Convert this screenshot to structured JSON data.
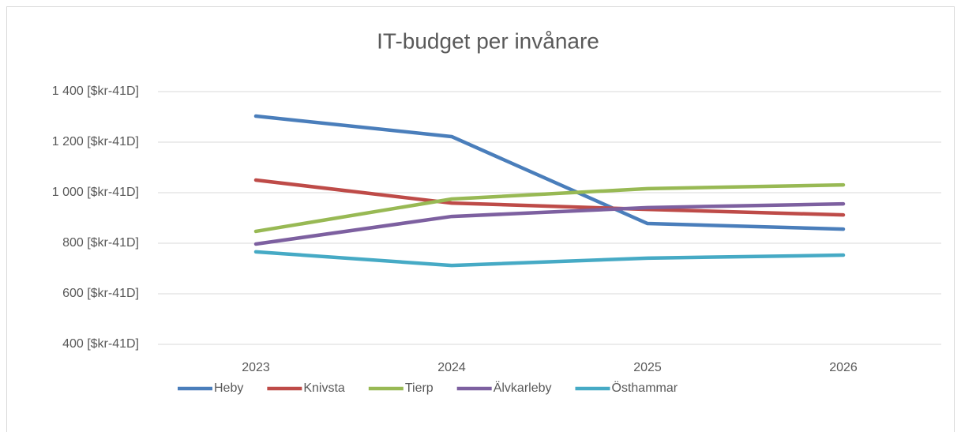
{
  "chart_data": {
    "type": "line",
    "title": "IT-budget per invånare",
    "categories": [
      "2023",
      "2024",
      "2025",
      "2026"
    ],
    "series": [
      {
        "name": "Heby",
        "color": "#4a7ebb",
        "values": [
          1303,
          1222,
          878,
          856
        ]
      },
      {
        "name": "Knivsta",
        "color": "#be4b48",
        "values": [
          1050,
          959,
          934,
          912
        ]
      },
      {
        "name": "Tierp",
        "color": "#98b954",
        "values": [
          847,
          975,
          1016,
          1031
        ]
      },
      {
        "name": "Älvkarleby",
        "color": "#7d60a0",
        "values": [
          797,
          906,
          941,
          956
        ]
      },
      {
        "name": "Östhammar",
        "color": "#46aac5",
        "values": [
          766,
          712,
          741,
          753
        ]
      }
    ],
    "ylim": [
      400,
      1400
    ],
    "yticks": [
      {
        "value": 400,
        "label": "400 [$kr-41D]"
      },
      {
        "value": 600,
        "label": "600 [$kr-41D]"
      },
      {
        "value": 800,
        "label": "800 [$kr-41D]"
      },
      {
        "value": 1000,
        "label": "1 000 [$kr-41D]"
      },
      {
        "value": 1200,
        "label": "1 200 [$kr-41D]"
      },
      {
        "value": 1400,
        "label": "1 400 [$kr-41D]"
      }
    ],
    "grid": true,
    "legend": "bottom"
  }
}
